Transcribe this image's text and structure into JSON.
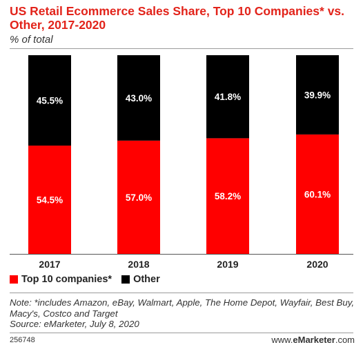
{
  "header": {
    "title": "US Retail Ecommerce Sales Share, Top 10 Companies* vs. Other, 2017-2020",
    "subtitle": "% of total"
  },
  "colors": {
    "top10": "#ff0000",
    "other": "#000000",
    "title": "#e2231a"
  },
  "chart_data": {
    "type": "bar",
    "stacked": true,
    "categories": [
      "2017",
      "2018",
      "2019",
      "2020"
    ],
    "series": [
      {
        "name": "Top 10 companies*",
        "values": [
          54.5,
          57.0,
          58.2,
          60.1
        ],
        "labels": [
          "54.5%",
          "57.0%",
          "58.2%",
          "60.1%"
        ],
        "color": "#ff0000"
      },
      {
        "name": "Other",
        "values": [
          45.5,
          43.0,
          41.8,
          39.9
        ],
        "labels": [
          "45.5%",
          "43.0%",
          "41.8%",
          "39.9%"
        ],
        "color": "#000000"
      }
    ],
    "title": "US Retail Ecommerce Sales Share, Top 10 Companies* vs. Other, 2017-2020",
    "ylabel": "% of total",
    "ylim": [
      0,
      100
    ],
    "grid": false,
    "legend": "bottom-left"
  },
  "footer": {
    "note": "Note: *includes Amazon, eBay, Walmart, Apple, The Home Depot, Wayfair, Best Buy, Macy's, Costco and Target",
    "source": "Source: eMarketer, July 8, 2020",
    "chart_id": "256748",
    "brand_prefix": "www.",
    "brand_name": "eMarketer",
    "brand_suffix": ".com"
  }
}
